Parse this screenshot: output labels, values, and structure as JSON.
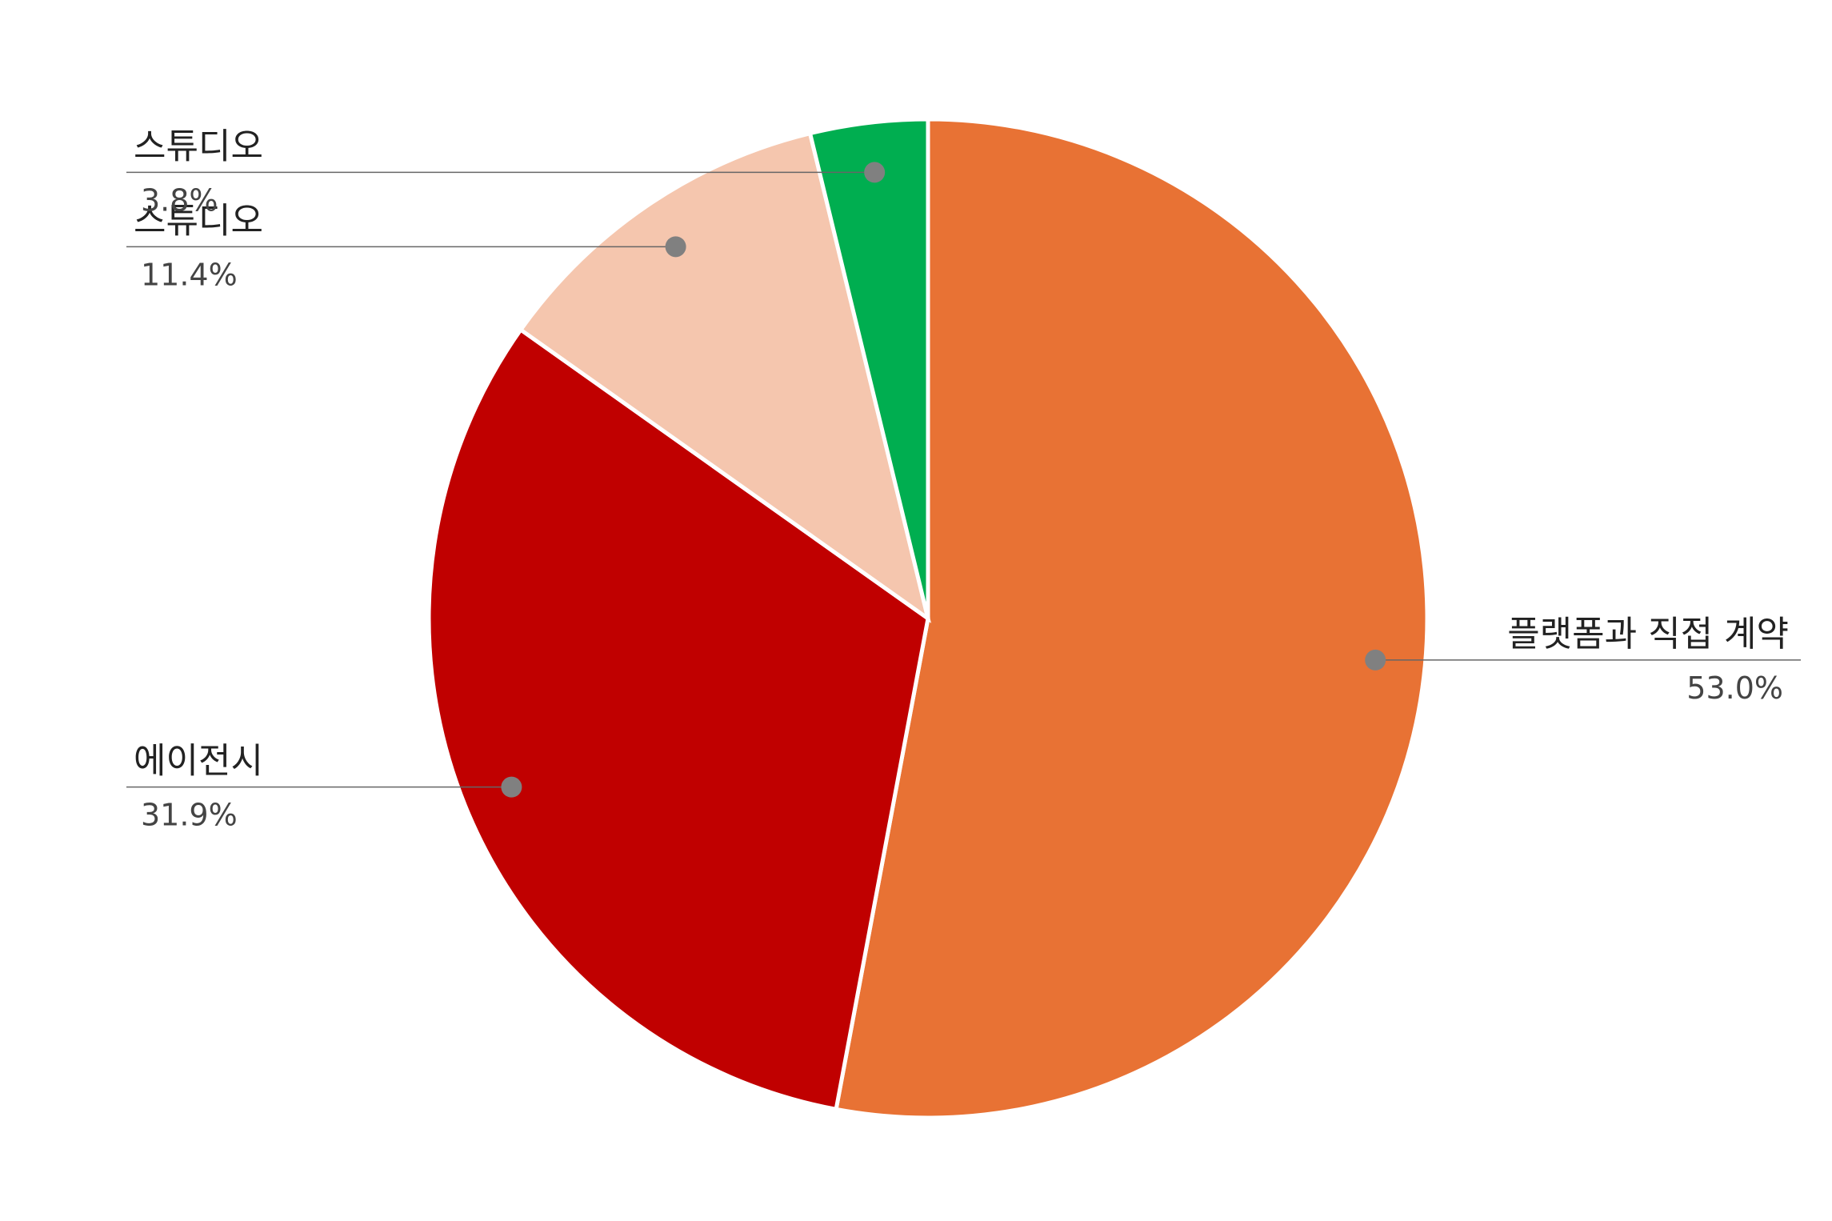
{
  "chart_data": {
    "type": "pie",
    "categories": [
      "플랫폼과 직접 계약",
      "에이전시",
      "스튜디오",
      "스튜디오"
    ],
    "values": [
      53.0,
      31.9,
      11.4,
      3.8
    ],
    "value_labels": [
      "53.0%",
      "31.9%",
      "11.4%",
      "3.8%"
    ],
    "colors": [
      "#E87234",
      "#C00000",
      "#F5C6AE",
      "#00AE50"
    ]
  }
}
